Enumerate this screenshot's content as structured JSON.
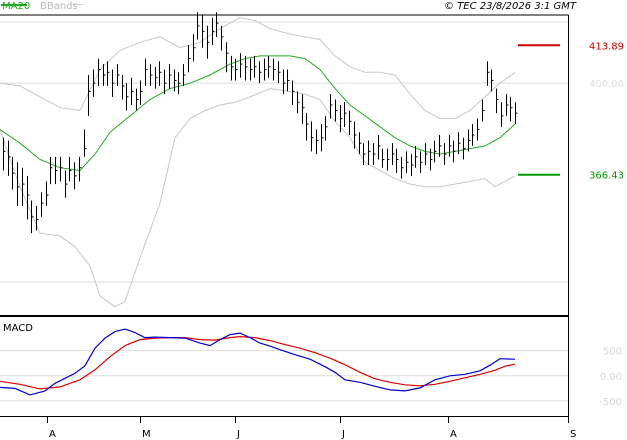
{
  "legend": {
    "ma_label": "MA20",
    "bb_label": "BBands"
  },
  "copyright": "© TEC 23/8/2026 3:1 GMT",
  "colors": {
    "ma": "#22aa22",
    "bb": "#c8c8c8",
    "price": "#000000",
    "macd": "#0000cc",
    "signal": "#dd0000",
    "resistance": "#cc0000",
    "support": "#009900",
    "grid": "#dddddd"
  },
  "chart_data": [
    {
      "type": "ohlc",
      "panel": "price",
      "ylim": [
        315,
        425
      ],
      "yticks": [
        {
          "value": 400,
          "label": "400.00"
        }
      ],
      "x_months": [
        "A",
        "M",
        "J",
        "J",
        "A",
        "S"
      ],
      "levels": [
        {
          "value": 413.89,
          "label": "413.89",
          "color": "#cc0000"
        },
        {
          "value": 366.43,
          "label": "366.43",
          "color": "#009900"
        }
      ],
      "bars": [
        [
          375,
          380,
          368
        ],
        [
          373,
          379,
          366
        ],
        [
          367,
          373,
          361
        ],
        [
          362,
          371,
          355
        ],
        [
          363,
          369,
          355
        ],
        [
          359,
          366,
          350
        ],
        [
          351,
          357,
          345
        ],
        [
          350,
          355,
          346
        ],
        [
          356,
          360,
          351
        ],
        [
          359,
          364,
          355
        ],
        [
          369,
          373,
          363
        ],
        [
          368,
          373,
          363
        ],
        [
          369,
          373,
          364
        ],
        [
          363,
          368,
          358
        ],
        [
          368,
          373,
          364
        ],
        [
          366,
          371,
          361
        ],
        [
          369,
          373,
          364
        ],
        [
          376,
          383,
          373
        ],
        [
          397,
          403,
          388
        ],
        [
          400,
          405,
          395
        ],
        [
          405,
          409,
          399
        ],
        [
          403,
          407,
          399
        ],
        [
          404,
          408,
          399
        ],
        [
          400,
          405,
          395
        ],
        [
          403,
          407,
          399
        ],
        [
          399,
          403,
          394
        ],
        [
          395,
          400,
          390
        ],
        [
          397,
          402,
          392
        ],
        [
          394,
          398,
          390
        ],
        [
          397,
          401,
          392
        ],
        [
          405,
          409,
          399
        ],
        [
          403,
          407,
          399
        ],
        [
          402,
          406,
          398
        ],
        [
          404,
          408,
          399
        ],
        [
          400,
          405,
          396
        ],
        [
          403,
          407,
          398
        ],
        [
          401,
          405,
          397
        ],
        [
          400,
          404,
          396
        ],
        [
          403,
          407,
          399
        ],
        [
          409,
          414,
          404
        ],
        [
          413,
          418,
          408
        ],
        [
          421,
          426,
          416
        ],
        [
          419,
          425,
          413
        ],
        [
          415,
          421,
          409
        ],
        [
          419,
          424,
          414
        ],
        [
          422,
          426,
          417
        ],
        [
          417,
          421,
          412
        ],
        [
          411,
          415,
          404
        ],
        [
          406,
          410,
          401
        ],
        [
          405,
          409,
          401
        ],
        [
          407,
          411,
          402
        ],
        [
          406,
          410,
          401
        ],
        [
          405,
          409,
          401
        ],
        [
          406,
          410,
          402
        ],
        [
          404,
          408,
          400
        ],
        [
          405,
          409,
          401
        ],
        [
          406,
          410,
          402
        ],
        [
          405,
          409,
          401
        ],
        [
          404,
          408,
          400
        ],
        [
          400,
          405,
          396
        ],
        [
          401,
          405,
          397
        ],
        [
          397,
          401,
          392
        ],
        [
          393,
          397,
          389
        ],
        [
          391,
          396,
          385
        ],
        [
          385,
          389,
          379
        ],
        [
          380,
          386,
          375
        ],
        [
          379,
          383,
          374
        ],
        [
          380,
          385,
          375
        ],
        [
          384,
          388,
          379
        ],
        [
          392,
          396,
          387
        ],
        [
          390,
          394,
          386
        ],
        [
          387,
          392,
          382
        ],
        [
          389,
          393,
          384
        ],
        [
          386,
          390,
          381
        ],
        [
          381,
          386,
          376
        ],
        [
          378,
          382,
          374
        ],
        [
          374,
          378,
          370
        ],
        [
          375,
          379,
          370
        ],
        [
          374,
          378,
          370
        ],
        [
          377,
          381,
          372
        ],
        [
          372,
          376,
          369
        ],
        [
          372,
          376,
          368
        ],
        [
          374,
          378,
          370
        ],
        [
          372,
          376,
          367
        ],
        [
          369,
          373,
          365
        ],
        [
          371,
          375,
          367
        ],
        [
          370,
          374,
          366
        ],
        [
          373,
          377,
          369
        ],
        [
          371,
          375,
          367
        ],
        [
          374,
          378,
          370
        ],
        [
          372,
          376,
          368
        ],
        [
          375,
          379,
          371
        ],
        [
          377,
          381,
          373
        ],
        [
          374,
          378,
          370
        ],
        [
          377,
          381,
          373
        ],
        [
          375,
          379,
          371
        ],
        [
          378,
          382,
          374
        ],
        [
          376,
          380,
          372
        ],
        [
          379,
          383,
          375
        ],
        [
          381,
          385,
          377
        ],
        [
          383,
          387,
          379
        ],
        [
          390,
          394,
          386
        ],
        [
          404,
          408,
          399
        ],
        [
          401,
          405,
          397
        ],
        [
          394,
          398,
          389
        ],
        [
          388,
          393,
          384
        ],
        [
          392,
          396,
          388
        ],
        [
          391,
          395,
          386
        ],
        [
          389,
          393,
          385
        ]
      ],
      "ma20": [
        [
          0,
          383
        ],
        [
          20,
          378
        ],
        [
          40,
          372
        ],
        [
          60,
          369
        ],
        [
          80,
          368
        ],
        [
          95,
          374
        ],
        [
          110,
          382
        ],
        [
          130,
          388
        ],
        [
          150,
          394
        ],
        [
          170,
          398
        ],
        [
          190,
          400
        ],
        [
          210,
          403
        ],
        [
          230,
          407
        ],
        [
          245,
          409
        ],
        [
          260,
          410
        ],
        [
          275,
          410
        ],
        [
          290,
          410
        ],
        [
          305,
          409
        ],
        [
          320,
          405
        ],
        [
          335,
          398
        ],
        [
          350,
          392
        ],
        [
          365,
          388
        ],
        [
          380,
          384
        ],
        [
          395,
          380
        ],
        [
          410,
          377
        ],
        [
          425,
          375
        ],
        [
          440,
          374
        ],
        [
          455,
          375
        ],
        [
          470,
          376
        ],
        [
          485,
          377
        ],
        [
          500,
          380
        ],
        [
          515,
          385
        ]
      ],
      "bb_upper": [
        [
          0,
          400
        ],
        [
          20,
          399
        ],
        [
          40,
          395
        ],
        [
          60,
          391
        ],
        [
          80,
          390
        ],
        [
          100,
          405
        ],
        [
          120,
          412
        ],
        [
          140,
          415
        ],
        [
          160,
          417
        ],
        [
          180,
          413
        ],
        [
          200,
          415
        ],
        [
          220,
          420
        ],
        [
          240,
          424
        ],
        [
          255,
          423
        ],
        [
          270,
          420
        ],
        [
          290,
          418
        ],
        [
          305,
          417
        ],
        [
          320,
          416
        ],
        [
          335,
          410
        ],
        [
          350,
          406
        ],
        [
          365,
          404
        ],
        [
          380,
          404
        ],
        [
          395,
          403
        ],
        [
          410,
          396
        ],
        [
          425,
          390
        ],
        [
          440,
          387
        ],
        [
          455,
          387
        ],
        [
          470,
          390
        ],
        [
          485,
          395
        ],
        [
          500,
          400
        ],
        [
          515,
          404
        ]
      ],
      "bb_lower": [
        [
          0,
          383
        ],
        [
          10,
          372
        ],
        [
          20,
          362
        ],
        [
          40,
          345
        ],
        [
          60,
          344
        ],
        [
          75,
          340
        ],
        [
          90,
          333
        ],
        [
          100,
          322
        ],
        [
          115,
          318
        ],
        [
          125,
          320
        ],
        [
          140,
          336
        ],
        [
          160,
          356
        ],
        [
          175,
          380
        ],
        [
          190,
          387
        ],
        [
          205,
          390
        ],
        [
          220,
          392
        ],
        [
          235,
          393
        ],
        [
          250,
          395
        ],
        [
          270,
          398
        ],
        [
          290,
          397
        ],
        [
          305,
          396
        ],
        [
          320,
          394
        ],
        [
          335,
          386
        ],
        [
          350,
          380
        ],
        [
          365,
          371
        ],
        [
          380,
          368
        ],
        [
          395,
          365
        ],
        [
          410,
          363
        ],
        [
          425,
          362
        ],
        [
          440,
          362
        ],
        [
          455,
          363
        ],
        [
          470,
          364
        ],
        [
          485,
          365
        ],
        [
          495,
          362
        ],
        [
          505,
          364
        ],
        [
          515,
          366
        ]
      ]
    },
    {
      "type": "line",
      "panel": "macd",
      "title": "MACD",
      "ylim": [
        -800,
        1150
      ],
      "yticks": [
        {
          "value": 500,
          "label": "500"
        },
        {
          "value": 0,
          "label": "0.00"
        },
        {
          "value": -500,
          "label": "-500"
        }
      ],
      "series": [
        {
          "name": "macd",
          "points": [
            [
              0,
              -230
            ],
            [
              15,
              -250
            ],
            [
              30,
              -380
            ],
            [
              45,
              -300
            ],
            [
              55,
              -150
            ],
            [
              65,
              -50
            ],
            [
              75,
              50
            ],
            [
              85,
              200
            ],
            [
              95,
              550
            ],
            [
              105,
              750
            ],
            [
              115,
              880
            ],
            [
              125,
              930
            ],
            [
              135,
              860
            ],
            [
              145,
              760
            ],
            [
              155,
              770
            ],
            [
              170,
              760
            ],
            [
              185,
              750
            ],
            [
              200,
              650
            ],
            [
              210,
              600
            ],
            [
              220,
              720
            ],
            [
              230,
              820
            ],
            [
              240,
              850
            ],
            [
              250,
              760
            ],
            [
              260,
              650
            ],
            [
              270,
              590
            ],
            [
              280,
              520
            ],
            [
              295,
              420
            ],
            [
              310,
              330
            ],
            [
              325,
              180
            ],
            [
              335,
              70
            ],
            [
              345,
              -80
            ],
            [
              360,
              -130
            ],
            [
              375,
              -210
            ],
            [
              390,
              -280
            ],
            [
              405,
              -300
            ],
            [
              420,
              -240
            ],
            [
              435,
              -80
            ],
            [
              450,
              0
            ],
            [
              465,
              30
            ],
            [
              480,
              100
            ],
            [
              490,
              210
            ],
            [
              500,
              340
            ],
            [
              515,
              330
            ]
          ]
        },
        {
          "name": "signal",
          "points": [
            [
              0,
              -110
            ],
            [
              20,
              -170
            ],
            [
              40,
              -260
            ],
            [
              60,
              -220
            ],
            [
              80,
              -80
            ],
            [
              95,
              120
            ],
            [
              110,
              380
            ],
            [
              125,
              600
            ],
            [
              140,
              720
            ],
            [
              155,
              750
            ],
            [
              170,
              760
            ],
            [
              185,
              760
            ],
            [
              200,
              720
            ],
            [
              215,
              710
            ],
            [
              230,
              760
            ],
            [
              240,
              780
            ],
            [
              255,
              760
            ],
            [
              270,
              700
            ],
            [
              285,
              620
            ],
            [
              300,
              550
            ],
            [
              315,
              460
            ],
            [
              330,
              350
            ],
            [
              345,
              220
            ],
            [
              360,
              70
            ],
            [
              375,
              -60
            ],
            [
              390,
              -130
            ],
            [
              405,
              -180
            ],
            [
              420,
              -200
            ],
            [
              435,
              -170
            ],
            [
              450,
              -110
            ],
            [
              465,
              -40
            ],
            [
              480,
              30
            ],
            [
              495,
              110
            ],
            [
              505,
              190
            ],
            [
              515,
              230
            ]
          ]
        }
      ]
    }
  ]
}
